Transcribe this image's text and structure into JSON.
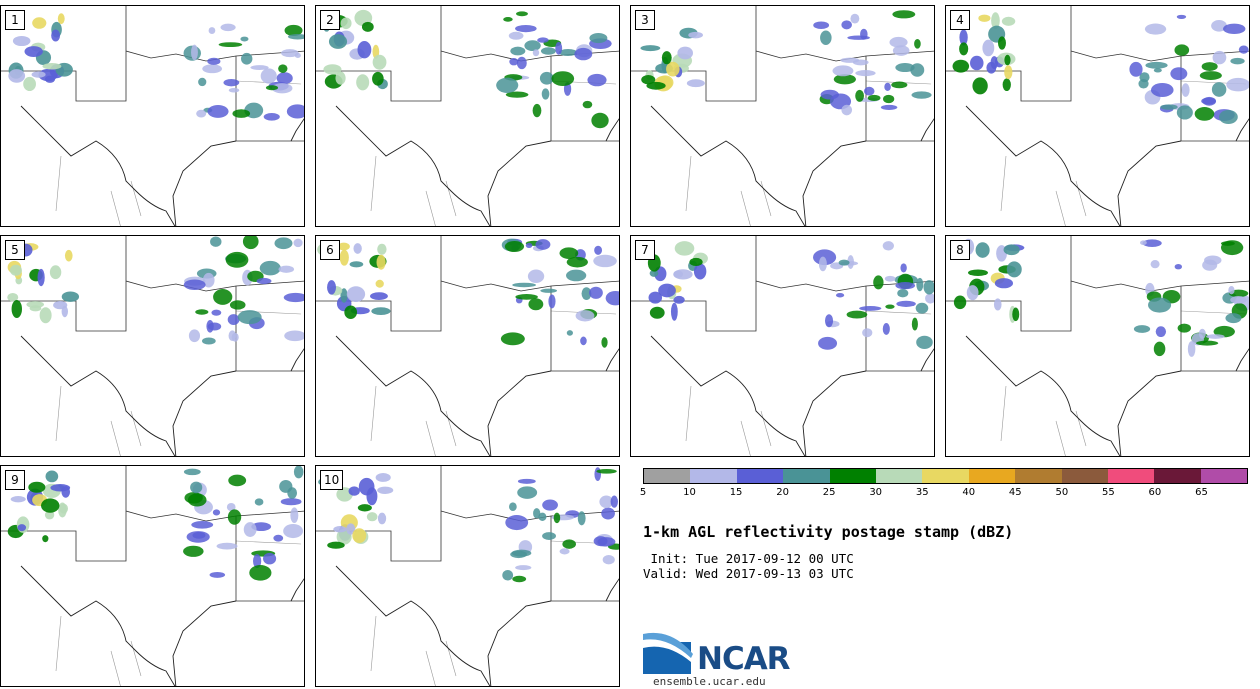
{
  "panels": [
    {
      "label": "1"
    },
    {
      "label": "2"
    },
    {
      "label": "3"
    },
    {
      "label": "4"
    },
    {
      "label": "5"
    },
    {
      "label": "6"
    },
    {
      "label": "7"
    },
    {
      "label": "8"
    },
    {
      "label": "9"
    },
    {
      "label": "10"
    }
  ],
  "colorbar": {
    "colors": [
      "#a0a0a0",
      "#b3b8e8",
      "#5a5fd6",
      "#4a9396",
      "#008000",
      "#b8dab8",
      "#e8d862",
      "#e8a820",
      "#b07c30",
      "#8b5a3c",
      "#f04c7c",
      "#6a1838",
      "#b04ca8"
    ],
    "ticks": [
      "5",
      "10",
      "15",
      "20",
      "25",
      "30",
      "35",
      "40",
      "45",
      "50",
      "55",
      "60",
      "65"
    ]
  },
  "title": "1-km AGL reflectivity postage stamp (dBZ)",
  "init": " Init: Tue 2017-09-12 00 UTC",
  "valid": "Valid: Wed 2017-09-13 03 UTC",
  "logo": {
    "text": "NCAR",
    "site": "ensemble.ucar.edu"
  }
}
